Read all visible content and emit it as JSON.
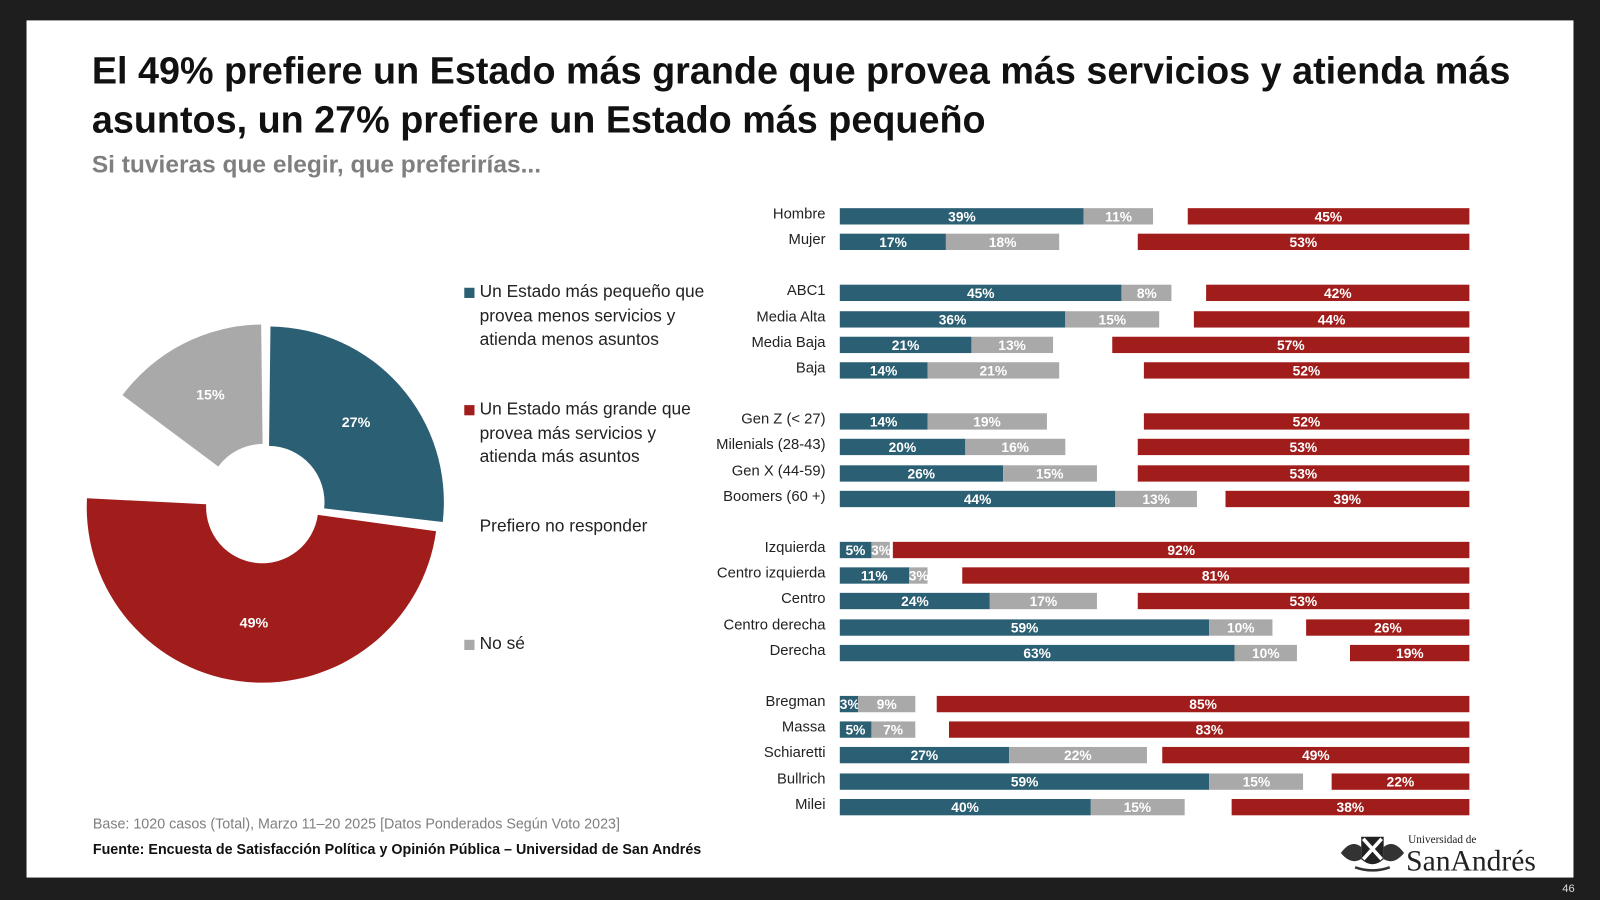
{
  "title": "El 49% prefiere un Estado más grande que provea más servicios y atienda más asuntos, un 27% prefiere un Estado más pequeño",
  "subtitle": "Si tuvieras que elegir, que preferirías...",
  "footer": {
    "base": "Base: 1020 casos (Total), Marzo 11–20 2025 [Datos Ponderados Según Voto 2023]",
    "source": "Fuente: Encuesta de Satisfacción Política y Opinión Pública – Universidad de San Andrés",
    "page_number": "46"
  },
  "logo": {
    "line1": "Universidad de",
    "line2": "SanAndrés"
  },
  "colors": {
    "pequeno": "#2b5f73",
    "grande": "#a11d1b",
    "nose": "#a9a9a9",
    "background": "#1e1e1e"
  },
  "chart_data": [
    {
      "type": "pie",
      "variant": "donut",
      "legend": [
        {
          "label": "Un Estado más pequeño que provea menos servicios y atienda menos asuntos",
          "color": "#2b5f73"
        },
        {
          "label": "Un Estado más grande que provea más servicios y atienda más asuntos",
          "color": "#a11d1b"
        },
        {
          "label": "Prefiero no responder",
          "color": null
        },
        {
          "label": "No sé",
          "color": "#a9a9a9"
        }
      ],
      "slices": [
        {
          "category": "Un Estado más pequeño",
          "value": 27,
          "label": "27%"
        },
        {
          "category": "Un Estado más grande",
          "value": 49,
          "label": "49%"
        },
        {
          "category": "Prefiero no responder",
          "value": 9,
          "label": ""
        },
        {
          "category": "No sé",
          "value": 15,
          "label": "15%"
        }
      ]
    },
    {
      "type": "bar",
      "orientation": "horizontal",
      "series_order": [
        "Un Estado más pequeño",
        "No sé",
        "Un Estado más grande"
      ],
      "groups": [
        [
          {
            "category": "Hombre",
            "pequeno": 39,
            "nose": 11,
            "grande": 45
          },
          {
            "category": "Mujer",
            "pequeno": 17,
            "nose": 18,
            "grande": 53
          }
        ],
        [
          {
            "category": "ABC1",
            "pequeno": 45,
            "nose": 8,
            "grande": 42
          },
          {
            "category": "Media Alta",
            "pequeno": 36,
            "nose": 15,
            "grande": 44
          },
          {
            "category": "Media Baja",
            "pequeno": 21,
            "nose": 13,
            "grande": 57
          },
          {
            "category": "Baja",
            "pequeno": 14,
            "nose": 21,
            "grande": 52
          }
        ],
        [
          {
            "category": "Gen Z (< 27)",
            "pequeno": 14,
            "nose": 19,
            "grande": 52
          },
          {
            "category": "Milenials (28-43)",
            "pequeno": 20,
            "nose": 16,
            "grande": 53
          },
          {
            "category": "Gen X (44-59)",
            "pequeno": 26,
            "nose": 15,
            "grande": 53
          },
          {
            "category": "Boomers (60 +)",
            "pequeno": 44,
            "nose": 13,
            "grande": 39
          }
        ],
        [
          {
            "category": "Izquierda",
            "pequeno": 5,
            "nose": 3,
            "grande": 92
          },
          {
            "category": "Centro izquierda",
            "pequeno": 11,
            "nose": 3,
            "grande": 81
          },
          {
            "category": "Centro",
            "pequeno": 24,
            "nose": 17,
            "grande": 53
          },
          {
            "category": "Centro derecha",
            "pequeno": 59,
            "nose": 10,
            "grande": 26
          },
          {
            "category": "Derecha",
            "pequeno": 63,
            "nose": 10,
            "grande": 19
          }
        ],
        [
          {
            "category": "Bregman",
            "pequeno": 3,
            "nose": 9,
            "grande": 85
          },
          {
            "category": "Massa",
            "pequeno": 5,
            "nose": 7,
            "grande": 83
          },
          {
            "category": "Schiaretti",
            "pequeno": 27,
            "nose": 22,
            "grande": 49
          },
          {
            "category": "Bullrich",
            "pequeno": 59,
            "nose": 15,
            "grande": 22
          },
          {
            "category": "Milei",
            "pequeno": 40,
            "nose": 15,
            "grande": 38
          }
        ]
      ]
    }
  ]
}
